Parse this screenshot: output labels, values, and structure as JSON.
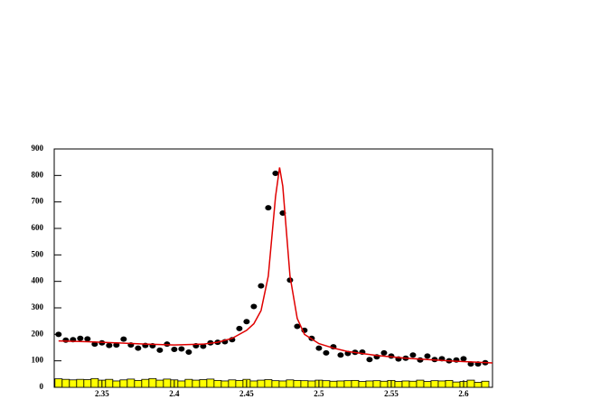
{
  "chart_data": {
    "type": "scatter",
    "xlim": [
      2.317,
      2.62
    ],
    "ylim": [
      0,
      900
    ],
    "xticks": [
      2.35,
      2.4,
      2.45,
      2.5,
      2.55,
      2.6
    ],
    "yticks": [
      0,
      100,
      200,
      300,
      400,
      500,
      600,
      700,
      800,
      900
    ],
    "series": [
      {
        "style": "histogram",
        "color": "#ffff00",
        "bins": [
          2.3175,
          2.3225,
          2.3275,
          2.3325,
          2.3375,
          2.3425,
          2.3475,
          2.3525,
          2.3575,
          2.3625,
          2.3675,
          2.3725,
          2.3775,
          2.3825,
          2.3875,
          2.3925,
          2.3975,
          2.4025,
          2.4075,
          2.4125,
          2.4175,
          2.4225,
          2.4275,
          2.4325,
          2.4375,
          2.4425,
          2.4475,
          2.4525,
          2.4575,
          2.4625,
          2.4675,
          2.4725,
          2.4775,
          2.4825,
          2.4875,
          2.4925,
          2.4975,
          2.5025,
          2.5075,
          2.5125,
          2.5175,
          2.5225,
          2.5275,
          2.5325,
          2.5375,
          2.5425,
          2.5475,
          2.5525,
          2.5575,
          2.5625,
          2.5675,
          2.5725,
          2.5775,
          2.5825,
          2.5875,
          2.5925,
          2.5975,
          2.6025,
          2.6075,
          2.6125,
          2.6175
        ],
        "values": [
          32,
          30,
          28,
          30,
          29,
          33,
          27,
          30,
          24,
          28,
          31,
          26,
          30,
          33,
          27,
          31,
          28,
          24,
          30,
          27,
          29,
          31,
          26,
          24,
          28,
          26,
          30,
          24,
          27,
          29,
          25,
          24,
          28,
          26,
          25,
          24,
          27,
          25,
          23,
          24,
          25,
          26,
          22,
          24,
          25,
          23,
          26,
          22,
          24,
          23,
          27,
          22,
          25,
          24,
          26,
          20,
          22,
          27,
          19,
          23
        ]
      },
      {
        "style": "points",
        "color": "#000000",
        "x": [
          2.32,
          2.325,
          2.33,
          2.335,
          2.34,
          2.345,
          2.35,
          2.355,
          2.36,
          2.365,
          2.37,
          2.375,
          2.38,
          2.385,
          2.39,
          2.395,
          2.4,
          2.405,
          2.41,
          2.415,
          2.42,
          2.425,
          2.43,
          2.435,
          2.44,
          2.445,
          2.45,
          2.455,
          2.46,
          2.465,
          2.47,
          2.475,
          2.48,
          2.485,
          2.49,
          2.495,
          2.5,
          2.505,
          2.51,
          2.515,
          2.52,
          2.525,
          2.53,
          2.535,
          2.54,
          2.545,
          2.55,
          2.555,
          2.56,
          2.565,
          2.57,
          2.575,
          2.58,
          2.585,
          2.59,
          2.595,
          2.6,
          2.605,
          2.61,
          2.615
        ],
        "values": [
          200,
          178,
          180,
          185,
          183,
          163,
          168,
          158,
          160,
          182,
          160,
          148,
          158,
          157,
          140,
          163,
          143,
          145,
          133,
          157,
          155,
          168,
          170,
          172,
          180,
          222,
          248,
          305,
          383,
          678,
          808,
          658,
          405,
          230,
          215,
          185,
          148,
          130,
          153,
          122,
          128,
          132,
          133,
          105,
          115,
          130,
          118,
          107,
          110,
          122,
          103,
          118,
          105,
          108,
          100,
          103,
          108,
          88,
          88,
          93
        ]
      },
      {
        "style": "line",
        "color": "#e00000",
        "x": [
          2.32,
          2.34,
          2.36,
          2.38,
          2.4,
          2.42,
          2.43,
          2.44,
          2.45,
          2.455,
          2.46,
          2.465,
          2.47,
          2.4728,
          2.475,
          2.48,
          2.485,
          2.49,
          2.5,
          2.51,
          2.52,
          2.54,
          2.56,
          2.58,
          2.6,
          2.62
        ],
        "values": [
          175,
          172,
          168,
          163,
          160,
          163,
          170,
          185,
          215,
          240,
          290,
          420,
          720,
          830,
          760,
          420,
          260,
          200,
          165,
          148,
          135,
          120,
          110,
          103,
          97,
          92
        ]
      }
    ]
  }
}
